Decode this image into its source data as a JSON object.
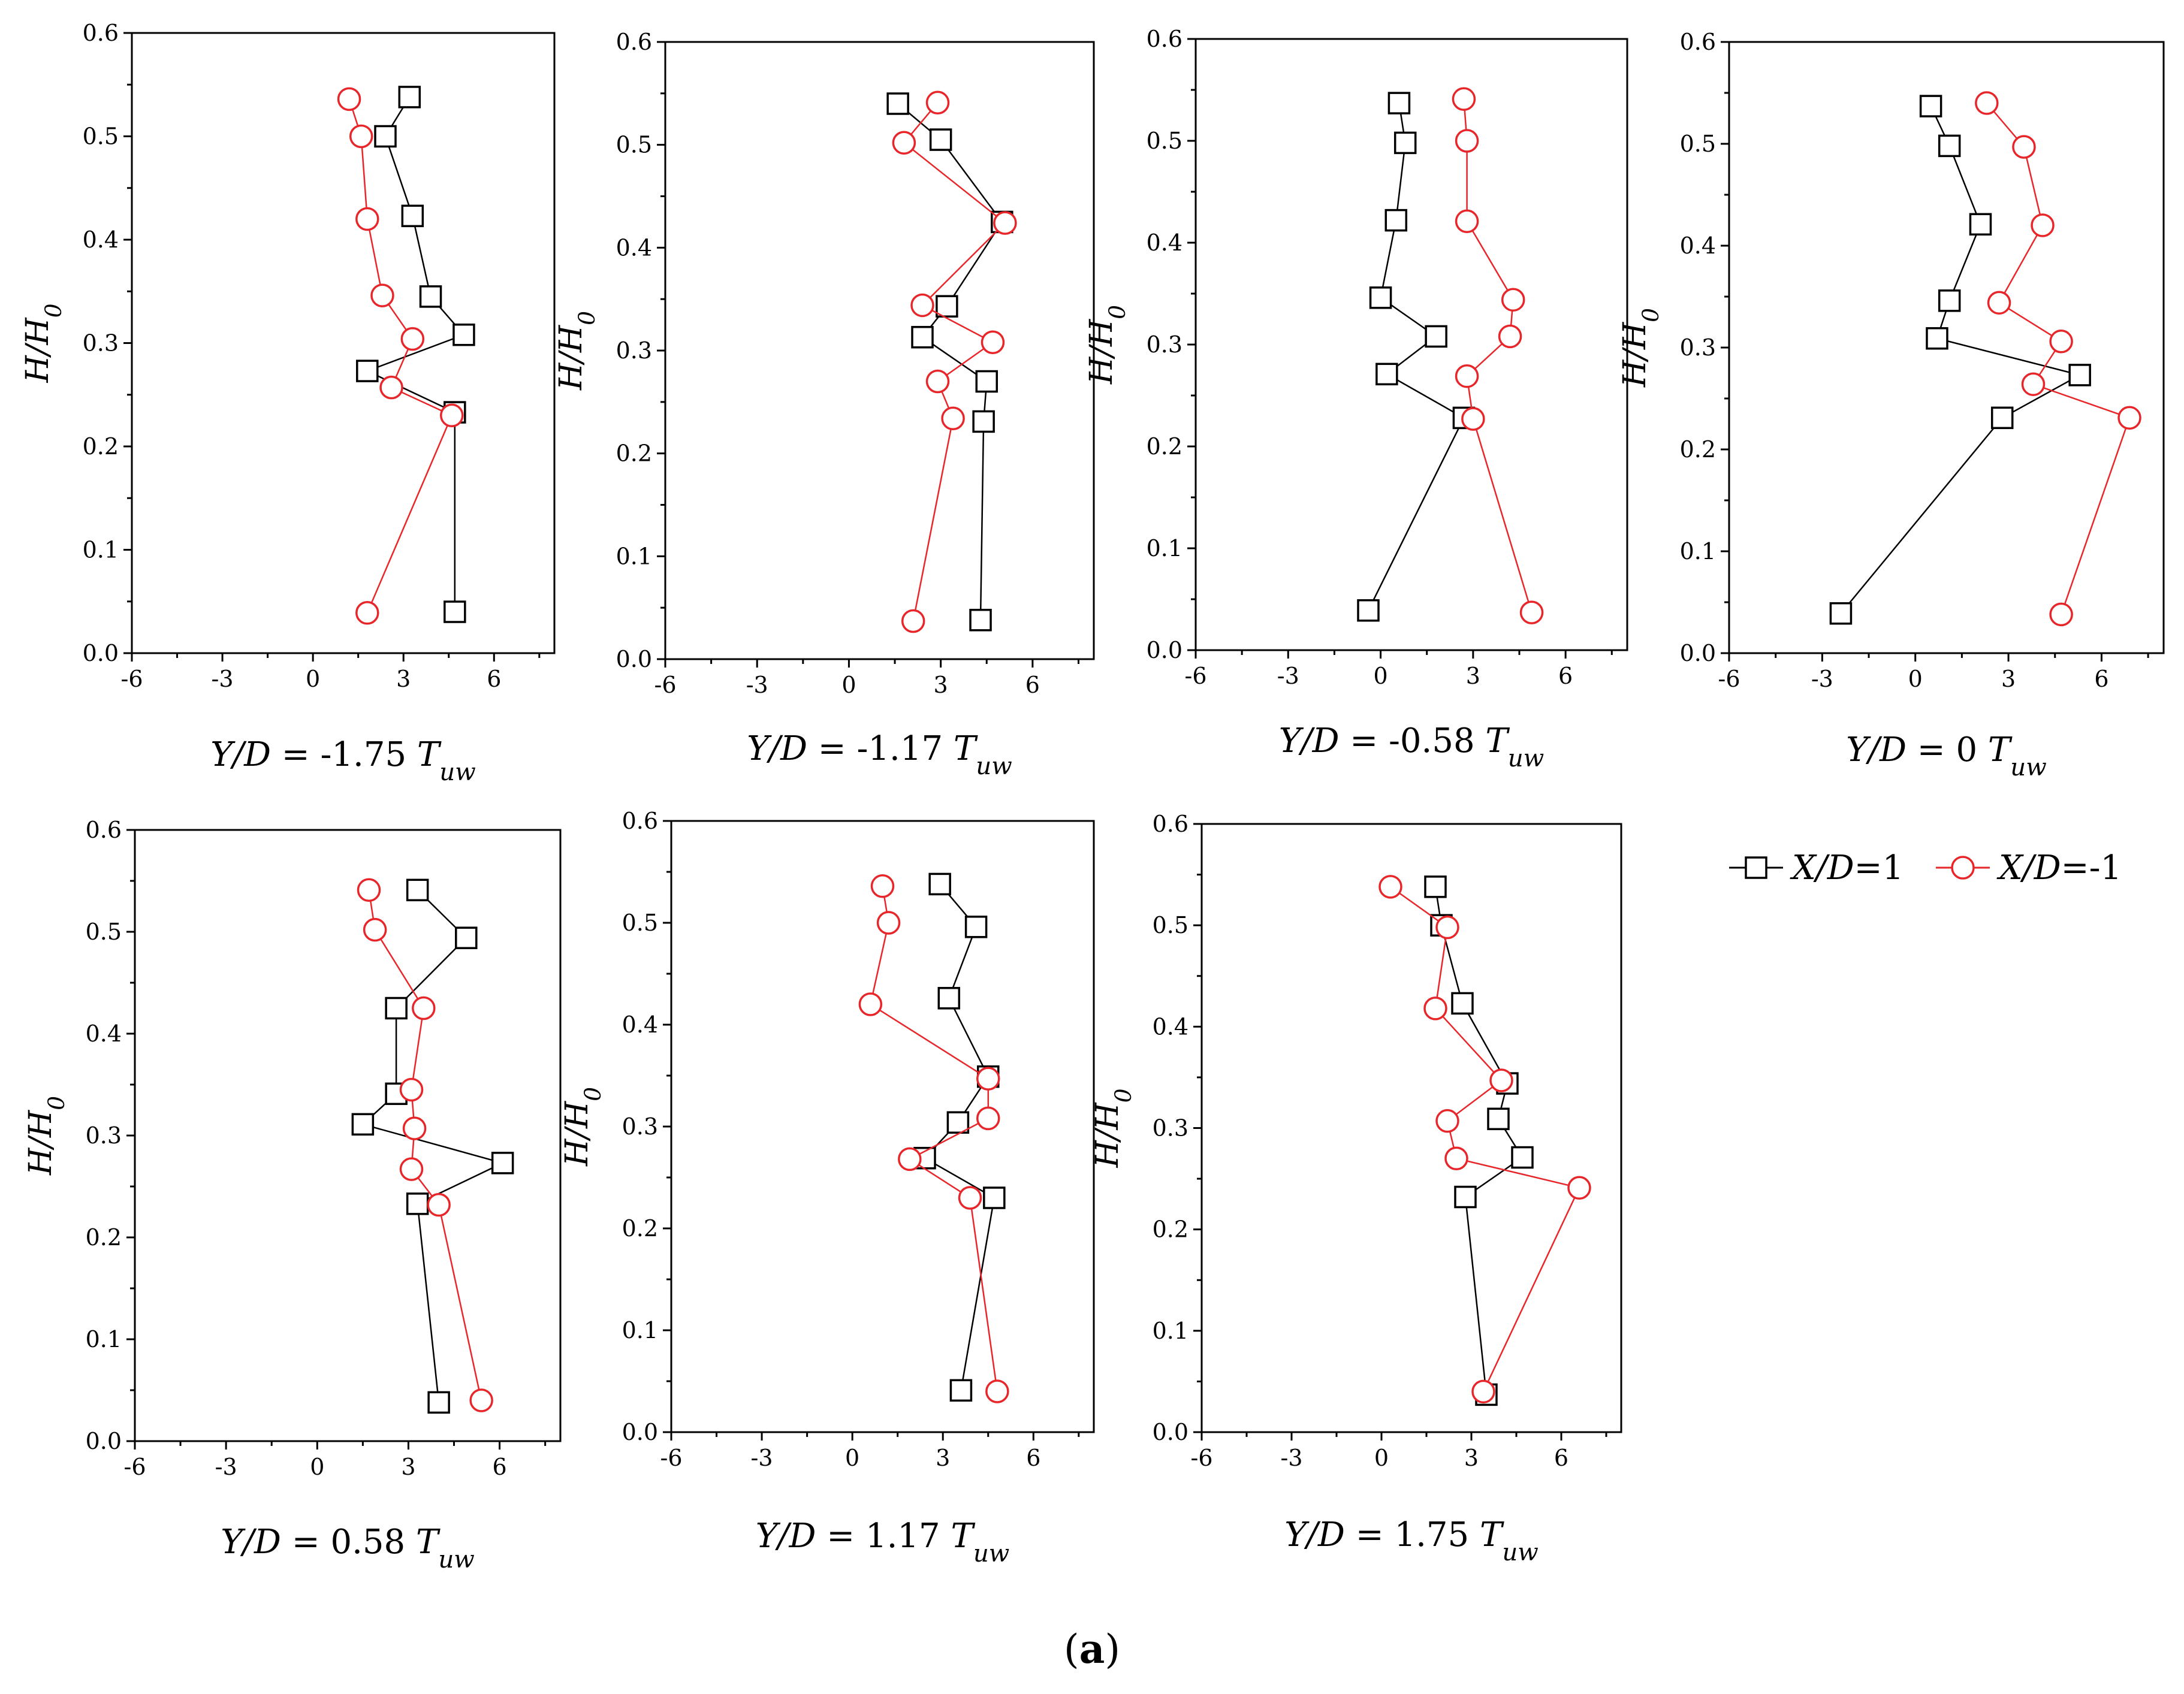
{
  "figure": {
    "panel_label": {
      "open": "(",
      "letter": "a",
      "close": ")"
    },
    "legend": [
      {
        "label_parts": [
          [
            "X/D",
            true
          ],
          [
            "=1",
            false
          ]
        ],
        "marker": "square",
        "color": "#000000"
      },
      {
        "label_parts": [
          [
            "X/D",
            true
          ],
          [
            "=-1",
            false
          ]
        ],
        "marker": "circle",
        "color": "#e8262a"
      }
    ]
  },
  "chart_data": [
    {
      "type": "line",
      "title_parts": [
        [
          "Y/D",
          true
        ],
        [
          " = -1.75 ",
          false
        ],
        [
          "T",
          true
        ],
        [
          "uw",
          true,
          "sub"
        ]
      ],
      "ylabel": "H/H0",
      "ylabel_parts": [
        [
          "H/H",
          true
        ],
        [
          "0",
          true,
          "sub"
        ]
      ],
      "xlim": [
        -6,
        8
      ],
      "ylim": [
        0,
        0.6
      ],
      "xticks": [
        -6,
        -3,
        0,
        3,
        6
      ],
      "yticks": [
        0.0,
        0.1,
        0.2,
        0.3,
        0.4,
        0.5,
        0.6
      ],
      "series": [
        {
          "name": "X/D=1",
          "marker": "square",
          "color": "#000000",
          "x": [
            3.2,
            2.4,
            3.3,
            3.9,
            5.0,
            1.8,
            4.7,
            4.7
          ],
          "y": [
            0.538,
            0.5,
            0.423,
            0.345,
            0.308,
            0.273,
            0.233,
            0.04
          ]
        },
        {
          "name": "X/D=-1",
          "marker": "circle",
          "color": "#e8262a",
          "x": [
            1.2,
            1.6,
            1.8,
            2.3,
            3.3,
            2.6,
            4.6,
            1.8
          ],
          "y": [
            0.536,
            0.5,
            0.42,
            0.346,
            0.304,
            0.257,
            0.23,
            0.039
          ]
        }
      ]
    },
    {
      "type": "line",
      "title_parts": [
        [
          "Y/D",
          true
        ],
        [
          " = -1.17 ",
          false
        ],
        [
          "T",
          true
        ],
        [
          "uw",
          true,
          "sub"
        ]
      ],
      "ylabel": "H/H0",
      "ylabel_parts": [
        [
          "H/H",
          true
        ],
        [
          "0",
          true,
          "sub"
        ]
      ],
      "xlim": [
        -6,
        8
      ],
      "ylim": [
        0,
        0.6
      ],
      "xticks": [
        -6,
        -3,
        0,
        3,
        6
      ],
      "yticks": [
        0.0,
        0.1,
        0.2,
        0.3,
        0.4,
        0.5,
        0.6
      ],
      "series": [
        {
          "name": "X/D=1",
          "marker": "square",
          "color": "#000000",
          "x": [
            1.6,
            3.0,
            5.0,
            3.2,
            2.4,
            4.5,
            4.4,
            4.3
          ],
          "y": [
            0.54,
            0.505,
            0.425,
            0.343,
            0.313,
            0.27,
            0.231,
            0.038
          ]
        },
        {
          "name": "X/D=-1",
          "marker": "circle",
          "color": "#e8262a",
          "x": [
            2.9,
            1.8,
            5.1,
            2.4,
            4.7,
            2.9,
            3.4,
            2.1
          ],
          "y": [
            0.541,
            0.502,
            0.424,
            0.344,
            0.308,
            0.27,
            0.234,
            0.037
          ]
        }
      ]
    },
    {
      "type": "line",
      "title_parts": [
        [
          "Y/D",
          true
        ],
        [
          " = -0.58 ",
          false
        ],
        [
          "T",
          true
        ],
        [
          "uw",
          true,
          "sub"
        ]
      ],
      "ylabel": "H/H0",
      "ylabel_parts": [
        [
          "H/H",
          true
        ],
        [
          "0",
          true,
          "sub"
        ]
      ],
      "xlim": [
        -6,
        8
      ],
      "ylim": [
        0,
        0.6
      ],
      "xticks": [
        -6,
        -3,
        0,
        3,
        6
      ],
      "yticks": [
        0.0,
        0.1,
        0.2,
        0.3,
        0.4,
        0.5,
        0.6
      ],
      "series": [
        {
          "name": "X/D=1",
          "marker": "square",
          "color": "#000000",
          "x": [
            0.6,
            0.8,
            0.5,
            0.0,
            1.8,
            0.2,
            2.7,
            -0.4
          ],
          "y": [
            0.537,
            0.498,
            0.422,
            0.346,
            0.308,
            0.271,
            0.228,
            0.039
          ]
        },
        {
          "name": "X/D=-1",
          "marker": "circle",
          "color": "#e8262a",
          "x": [
            2.7,
            2.8,
            2.8,
            4.3,
            4.2,
            2.8,
            3.0,
            4.9
          ],
          "y": [
            0.541,
            0.5,
            0.421,
            0.344,
            0.308,
            0.269,
            0.227,
            0.037
          ]
        }
      ]
    },
    {
      "type": "line",
      "title_parts": [
        [
          "Y/D",
          true
        ],
        [
          " = 0 ",
          false
        ],
        [
          "T",
          true
        ],
        [
          "uw",
          true,
          "sub"
        ]
      ],
      "ylabel": "H/H0",
      "ylabel_parts": [
        [
          "H/H",
          true
        ],
        [
          "0",
          true,
          "sub"
        ]
      ],
      "xlim": [
        -6,
        8
      ],
      "ylim": [
        0,
        0.6
      ],
      "xticks": [
        -6,
        -3,
        0,
        3,
        6
      ],
      "yticks": [
        0.0,
        0.1,
        0.2,
        0.3,
        0.4,
        0.5,
        0.6
      ],
      "series": [
        {
          "name": "X/D=1",
          "marker": "square",
          "color": "#000000",
          "x": [
            0.5,
            1.1,
            2.1,
            1.1,
            0.7,
            5.3,
            2.8,
            -2.4
          ],
          "y": [
            0.537,
            0.498,
            0.421,
            0.346,
            0.309,
            0.273,
            0.231,
            0.039
          ]
        },
        {
          "name": "X/D=-1",
          "marker": "circle",
          "color": "#e8262a",
          "x": [
            2.3,
            3.5,
            4.1,
            2.7,
            4.7,
            3.8,
            6.9,
            4.7
          ],
          "y": [
            0.54,
            0.497,
            0.42,
            0.344,
            0.306,
            0.264,
            0.231,
            0.038
          ]
        }
      ]
    },
    {
      "type": "line",
      "title_parts": [
        [
          "Y/D",
          true
        ],
        [
          " = 0.58 ",
          false
        ],
        [
          "T",
          true
        ],
        [
          "uw",
          true,
          "sub"
        ]
      ],
      "ylabel": "H/H0",
      "ylabel_parts": [
        [
          "H/H",
          true
        ],
        [
          "0",
          true,
          "sub"
        ]
      ],
      "xlim": [
        -6,
        8
      ],
      "ylim": [
        0,
        0.6
      ],
      "xticks": [
        -6,
        -3,
        0,
        3,
        6
      ],
      "yticks": [
        0.0,
        0.1,
        0.2,
        0.3,
        0.4,
        0.5,
        0.6
      ],
      "series": [
        {
          "name": "X/D=1",
          "marker": "square",
          "color": "#000000",
          "x": [
            3.3,
            4.9,
            2.6,
            2.6,
            1.5,
            6.1,
            3.3,
            4.0
          ],
          "y": [
            0.541,
            0.494,
            0.425,
            0.341,
            0.311,
            0.273,
            0.233,
            0.038
          ]
        },
        {
          "name": "X/D=-1",
          "marker": "circle",
          "color": "#e8262a",
          "x": [
            1.7,
            1.9,
            3.5,
            3.1,
            3.2,
            3.1,
            4.0,
            5.4
          ],
          "y": [
            0.541,
            0.502,
            0.425,
            0.345,
            0.307,
            0.267,
            0.232,
            0.04
          ]
        }
      ]
    },
    {
      "type": "line",
      "title_parts": [
        [
          "Y/D",
          true
        ],
        [
          " = 1.17 ",
          false
        ],
        [
          "T",
          true
        ],
        [
          "uw",
          true,
          "sub"
        ]
      ],
      "ylabel": "H/H0",
      "ylabel_parts": [
        [
          "H/H",
          true
        ],
        [
          "0",
          true,
          "sub"
        ]
      ],
      "xlim": [
        -6,
        8
      ],
      "ylim": [
        0,
        0.6
      ],
      "xticks": [
        -6,
        -3,
        0,
        3,
        6
      ],
      "yticks": [
        0.0,
        0.1,
        0.2,
        0.3,
        0.4,
        0.5,
        0.6
      ],
      "series": [
        {
          "name": "X/D=1",
          "marker": "square",
          "color": "#000000",
          "x": [
            2.9,
            4.1,
            3.2,
            4.5,
            3.5,
            2.4,
            4.7,
            3.6
          ],
          "y": [
            0.538,
            0.496,
            0.426,
            0.349,
            0.304,
            0.269,
            0.23,
            0.041
          ]
        },
        {
          "name": "X/D=-1",
          "marker": "circle",
          "color": "#e8262a",
          "x": [
            1.0,
            1.2,
            0.6,
            4.5,
            4.5,
            1.9,
            3.9,
            4.8
          ],
          "y": [
            0.536,
            0.5,
            0.42,
            0.347,
            0.308,
            0.268,
            0.23,
            0.04
          ]
        }
      ]
    },
    {
      "type": "line",
      "title_parts": [
        [
          "Y/D",
          true
        ],
        [
          " = 1.75 ",
          false
        ],
        [
          "T",
          true
        ],
        [
          "uw",
          true,
          "sub"
        ]
      ],
      "ylabel": "H/H0",
      "ylabel_parts": [
        [
          "H/H",
          true
        ],
        [
          "0",
          true,
          "sub"
        ]
      ],
      "xlim": [
        -6,
        8
      ],
      "ylim": [
        0,
        0.6
      ],
      "xticks": [
        -6,
        -3,
        0,
        3,
        6
      ],
      "yticks": [
        0.0,
        0.1,
        0.2,
        0.3,
        0.4,
        0.5,
        0.6
      ],
      "series": [
        {
          "name": "X/D=1",
          "marker": "square",
          "color": "#000000",
          "x": [
            1.8,
            2.0,
            2.7,
            4.2,
            3.9,
            4.7,
            2.8,
            3.5
          ],
          "y": [
            0.538,
            0.5,
            0.423,
            0.344,
            0.309,
            0.271,
            0.232,
            0.037
          ]
        },
        {
          "name": "X/D=-1",
          "marker": "circle",
          "color": "#e8262a",
          "x": [
            0.3,
            2.2,
            1.8,
            4.0,
            2.2,
            2.5,
            6.6,
            3.4
          ],
          "y": [
            0.538,
            0.498,
            0.418,
            0.347,
            0.307,
            0.27,
            0.241,
            0.04
          ]
        }
      ]
    }
  ]
}
